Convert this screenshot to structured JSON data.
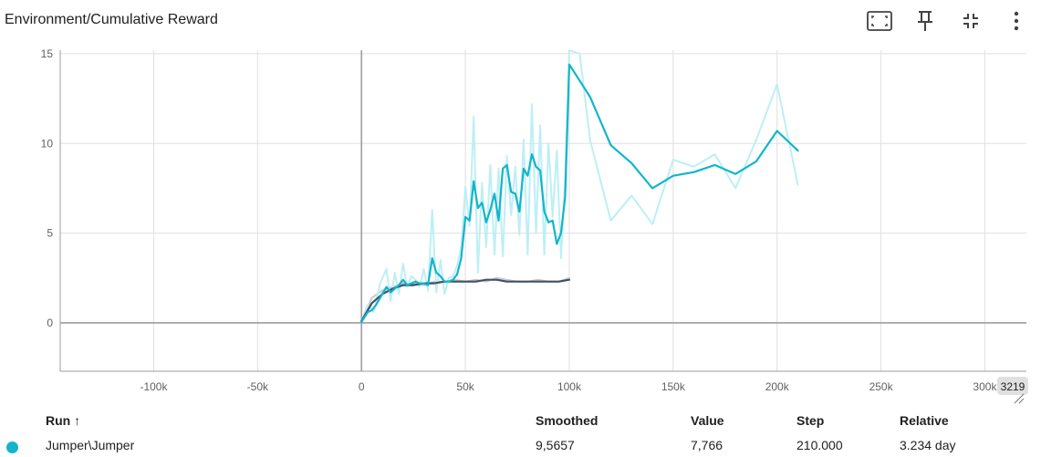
{
  "header": {
    "title": "Environment/Cumulative Reward",
    "icons": [
      "fullscreen-icon",
      "pin-icon",
      "fit-domain-icon",
      "more-vert-icon"
    ]
  },
  "colors": {
    "series_main": "#12b5cb",
    "series_main_raw": "#bdeff5",
    "series_secondary": "#425066",
    "series_secondary_raw": "#c6c9d2",
    "grid": "#e0e0e0",
    "axis": "#9e9e9e"
  },
  "chart_data": {
    "type": "line",
    "title": "Environment/Cumulative Reward",
    "xlabel": "",
    "ylabel": "",
    "xlim": [
      -145000,
      320000
    ],
    "ylim": [
      -2.7,
      15.2
    ],
    "x_ticks": [
      -100000,
      -50000,
      0,
      50000,
      100000,
      150000,
      200000,
      250000,
      300000
    ],
    "x_tick_labels": [
      "-100k",
      "-50k",
      "0",
      "50k",
      "100k",
      "150k",
      "200k",
      "250k",
      "300k"
    ],
    "y_ticks": [
      0,
      5,
      10,
      15
    ],
    "y_tick_labels": [
      "0",
      "5",
      "10",
      "15"
    ],
    "x_edge_label": "3219",
    "grid": true,
    "series": [
      {
        "name": "Jumper\\Jumper",
        "kind": "raw",
        "x": [
          0,
          3000,
          6000,
          9000,
          12000,
          14000,
          16000,
          18000,
          20000,
          22000,
          24000,
          26000,
          28000,
          30000,
          32000,
          34000,
          36000,
          38000,
          40000,
          42000,
          44000,
          46000,
          48000,
          50000,
          52000,
          54000,
          56000,
          58000,
          60000,
          62000,
          64000,
          66000,
          68000,
          70000,
          72000,
          74000,
          76000,
          78000,
          80000,
          82000,
          84000,
          86000,
          88000,
          90000,
          92000,
          94000,
          96000,
          98000,
          100000,
          105000,
          110000,
          120000,
          130000,
          140000,
          150000,
          160000,
          170000,
          180000,
          190000,
          200000,
          210000
        ],
        "y": [
          0.1,
          1.0,
          0.6,
          2.2,
          3.0,
          1.2,
          2.8,
          1.6,
          3.3,
          2.0,
          2.6,
          2.4,
          2.0,
          3.0,
          1.8,
          6.3,
          1.7,
          3.5,
          1.6,
          2.5,
          2.6,
          3.2,
          4.2,
          7.6,
          5.4,
          11.5,
          2.8,
          7.8,
          4.2,
          8.8,
          3.8,
          8.6,
          3.7,
          9.3,
          6.0,
          8.7,
          4.9,
          10.2,
          3.8,
          12.2,
          5.0,
          11.0,
          3.8,
          10.0,
          5.9,
          9.6,
          3.6,
          8.1,
          15.2,
          15.0,
          10.2,
          5.7,
          7.1,
          5.5,
          9.1,
          8.7,
          9.4,
          7.5,
          10.2,
          13.3,
          7.7
        ]
      },
      {
        "name": "Jumper\\Jumper",
        "kind": "smoothed",
        "x": [
          0,
          3000,
          5000,
          7000,
          10000,
          12000,
          14000,
          16000,
          18000,
          20000,
          22000,
          24000,
          26000,
          28000,
          30000,
          32000,
          34000,
          36000,
          38000,
          40000,
          42000,
          44000,
          46000,
          48000,
          50000,
          52000,
          54000,
          56000,
          58000,
          60000,
          62000,
          64000,
          66000,
          68000,
          70000,
          72000,
          74000,
          76000,
          78000,
          80000,
          82000,
          84000,
          86000,
          88000,
          90000,
          92000,
          94000,
          96000,
          98000,
          100000,
          110000,
          120000,
          130000,
          140000,
          150000,
          160000,
          170000,
          180000,
          190000,
          200000,
          210000
        ],
        "y": [
          0.05,
          0.6,
          0.7,
          1.0,
          1.6,
          2.0,
          1.7,
          1.9,
          2.1,
          2.4,
          2.1,
          2.2,
          2.3,
          2.2,
          2.2,
          2.1,
          3.6,
          2.8,
          2.6,
          2.3,
          2.3,
          2.4,
          2.7,
          3.6,
          5.9,
          5.7,
          7.9,
          6.4,
          6.7,
          5.6,
          6.3,
          7.2,
          5.7,
          8.6,
          8.8,
          7.3,
          7.2,
          6.2,
          8.6,
          8.2,
          9.4,
          8.7,
          8.5,
          6.2,
          5.6,
          5.7,
          4.4,
          5.0,
          7.0,
          14.4,
          12.6,
          9.9,
          8.9,
          7.5,
          8.2,
          8.4,
          8.8,
          8.3,
          9.0,
          10.7,
          9.6
        ]
      },
      {
        "name": "",
        "kind": "raw",
        "x": [
          0,
          5000,
          10000,
          15000,
          20000,
          25000,
          30000,
          35000,
          40000,
          45000,
          50000,
          55000,
          60000,
          65000,
          70000,
          75000,
          80000,
          85000,
          90000,
          95000,
          100000
        ],
        "y": [
          0.1,
          1.4,
          1.8,
          2.0,
          2.2,
          2.2,
          2.1,
          2.3,
          2.3,
          2.4,
          2.3,
          2.4,
          2.3,
          2.5,
          2.4,
          2.3,
          2.3,
          2.4,
          2.3,
          2.3,
          2.5
        ]
      },
      {
        "name": "",
        "kind": "smoothed",
        "x": [
          0,
          5000,
          10000,
          15000,
          20000,
          25000,
          30000,
          35000,
          40000,
          45000,
          50000,
          55000,
          60000,
          65000,
          70000,
          75000,
          80000,
          85000,
          90000,
          95000,
          100000
        ],
        "y": [
          0.1,
          1.1,
          1.6,
          1.9,
          2.1,
          2.1,
          2.2,
          2.2,
          2.3,
          2.3,
          2.3,
          2.3,
          2.4,
          2.4,
          2.3,
          2.3,
          2.3,
          2.3,
          2.3,
          2.3,
          2.4
        ]
      }
    ]
  },
  "table": {
    "headers": {
      "run": "Run ↑",
      "smoothed": "Smoothed",
      "value": "Value",
      "step": "Step",
      "relative": "Relative"
    },
    "rows": [
      {
        "run": "Jumper\\Jumper",
        "smoothed": "9,5657",
        "value": "7,766",
        "step": "210.000",
        "relative": "3.234 day"
      }
    ]
  }
}
